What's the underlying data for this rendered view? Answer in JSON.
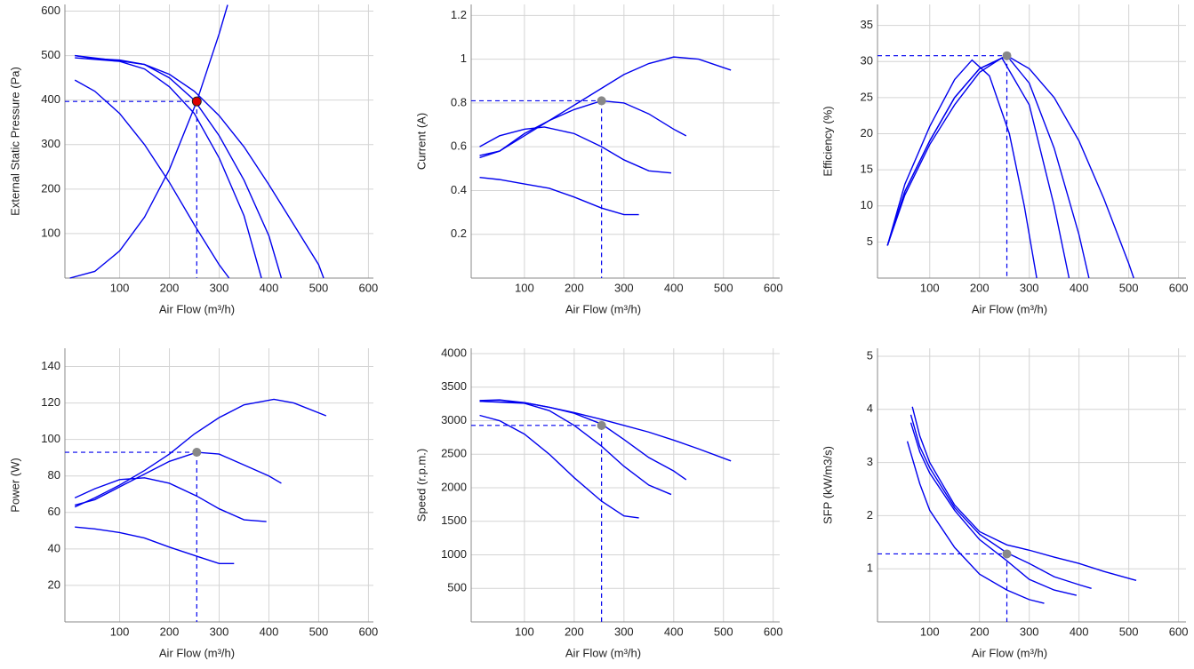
{
  "chart_data": [
    {
      "type": "line",
      "xlabel": "Air Flow (m³/h)",
      "ylabel": "External Static Pressure (Pa)",
      "xlim": [
        -10,
        610
      ],
      "ylim": [
        0,
        615
      ],
      "xticks": [
        100,
        200,
        300,
        400,
        500,
        600
      ],
      "yticks": [
        100,
        200,
        300,
        400,
        500,
        600
      ],
      "grid": true,
      "series": [
        {
          "color": "#0000ee",
          "x": [
            10,
            50,
            100,
            150,
            200,
            250,
            300,
            350,
            400,
            450,
            500,
            510
          ],
          "values": [
            500,
            493,
            490,
            480,
            458,
            420,
            365,
            295,
            210,
            120,
            30,
            0
          ]
        },
        {
          "color": "#0000ee",
          "x": [
            10,
            100,
            150,
            200,
            250,
            300,
            350,
            400,
            425
          ],
          "values": [
            500,
            488,
            480,
            450,
            400,
            320,
            220,
            95,
            0
          ]
        },
        {
          "color": "#0000ee",
          "x": [
            10,
            100,
            150,
            200,
            250,
            300,
            350,
            385
          ],
          "values": [
            495,
            487,
            470,
            430,
            370,
            270,
            140,
            0
          ]
        },
        {
          "color": "#0000ee",
          "x": [
            10,
            50,
            100,
            150,
            200,
            250,
            300,
            320
          ],
          "values": [
            445,
            420,
            370,
            300,
            215,
            120,
            30,
            0
          ]
        },
        {
          "color": "#0000ee",
          "x": [
            0,
            50,
            100,
            150,
            200,
            255,
            300,
            317
          ],
          "values": [
            0,
            15,
            61,
            137,
            244,
            397,
            549,
            614
          ]
        }
      ],
      "operating_point": {
        "x": 255,
        "y": 397,
        "color": "#dd0000"
      }
    },
    {
      "type": "line",
      "xlabel": "Air Flow (m³/h)",
      "ylabel": "Current (A)",
      "xlim": [
        -7,
        613
      ],
      "ylim": [
        0,
        1.25
      ],
      "xticks": [
        100,
        200,
        300,
        400,
        500,
        600
      ],
      "yticks": [
        0.2,
        0.4,
        0.6,
        0.8,
        1,
        1.2
      ],
      "grid": true,
      "series": [
        {
          "color": "#0000ee",
          "x": [
            10,
            50,
            100,
            150,
            200,
            250,
            300,
            350,
            400,
            450,
            515
          ],
          "values": [
            0.56,
            0.58,
            0.65,
            0.72,
            0.79,
            0.86,
            0.93,
            0.98,
            1.01,
            1.0,
            0.95
          ]
        },
        {
          "color": "#0000ee",
          "x": [
            10,
            50,
            100,
            150,
            200,
            255,
            300,
            350,
            400,
            425
          ],
          "values": [
            0.55,
            0.58,
            0.66,
            0.72,
            0.77,
            0.81,
            0.8,
            0.75,
            0.68,
            0.65
          ]
        },
        {
          "color": "#0000ee",
          "x": [
            10,
            50,
            100,
            140,
            200,
            255,
            300,
            350,
            395
          ],
          "values": [
            0.6,
            0.65,
            0.68,
            0.69,
            0.66,
            0.6,
            0.54,
            0.49,
            0.48
          ]
        },
        {
          "color": "#0000ee",
          "x": [
            10,
            50,
            100,
            150,
            200,
            255,
            300,
            330
          ],
          "values": [
            0.46,
            0.45,
            0.43,
            0.41,
            0.37,
            0.32,
            0.29,
            0.29
          ]
        }
      ],
      "operating_point": {
        "x": 255,
        "y": 0.81,
        "color": "#888888"
      }
    },
    {
      "type": "line",
      "xlabel": "Air Flow (m³/h)",
      "ylabel": "Efficiency (%)",
      "xlim": [
        -5,
        615
      ],
      "ylim": [
        0,
        37.9
      ],
      "xticks": [
        100,
        200,
        300,
        400,
        500,
        600
      ],
      "yticks": [
        5,
        10,
        15,
        20,
        25,
        30,
        35
      ],
      "grid": true,
      "series": [
        {
          "color": "#0000ee",
          "x": [
            15,
            50,
            100,
            150,
            200,
            255,
            300,
            350,
            400,
            450,
            500,
            510
          ],
          "values": [
            4.5,
            12,
            19,
            25,
            29,
            30.8,
            29,
            25,
            19,
            11,
            2,
            0
          ]
        },
        {
          "color": "#0000ee",
          "x": [
            15,
            50,
            100,
            150,
            200,
            255,
            300,
            350,
            400,
            420
          ],
          "values": [
            4.5,
            12,
            19,
            25,
            29,
            30.8,
            27,
            18,
            6,
            0
          ]
        },
        {
          "color": "#0000ee",
          "x": [
            15,
            50,
            100,
            150,
            200,
            245,
            300,
            350,
            380
          ],
          "values": [
            4.5,
            11.5,
            18.5,
            24,
            28.5,
            30.5,
            24,
            10,
            0
          ]
        },
        {
          "color": "#0000ee",
          "x": [
            15,
            50,
            100,
            150,
            185,
            220,
            260,
            290,
            315
          ],
          "values": [
            4.5,
            13,
            21,
            27.5,
            30.2,
            28,
            20,
            10,
            0
          ]
        }
      ],
      "operating_point": {
        "x": 255,
        "y": 30.8,
        "color": "#888888"
      }
    },
    {
      "type": "line",
      "xlabel": "Air Flow (m³/h)",
      "ylabel": "Power (W)",
      "xlim": [
        -10,
        610
      ],
      "ylim": [
        0,
        150
      ],
      "xticks": [
        100,
        200,
        300,
        400,
        500,
        600
      ],
      "yticks": [
        20,
        40,
        60,
        80,
        100,
        120,
        140
      ],
      "grid": true,
      "series": [
        {
          "color": "#0000ee",
          "x": [
            10,
            50,
            100,
            150,
            200,
            250,
            300,
            350,
            410,
            450,
            515
          ],
          "values": [
            63,
            68,
            75,
            83,
            92,
            103,
            112,
            119,
            122,
            120,
            113
          ]
        },
        {
          "color": "#0000ee",
          "x": [
            10,
            50,
            100,
            150,
            200,
            255,
            300,
            350,
            400,
            425
          ],
          "values": [
            64,
            67,
            74,
            81,
            88,
            93,
            92,
            86,
            80,
            76
          ]
        },
        {
          "color": "#0000ee",
          "x": [
            10,
            50,
            100,
            150,
            200,
            255,
            300,
            350,
            395
          ],
          "values": [
            68,
            73,
            78,
            79,
            76,
            69,
            62,
            56,
            55
          ]
        },
        {
          "color": "#0000ee",
          "x": [
            10,
            50,
            100,
            150,
            200,
            255,
            300,
            330
          ],
          "values": [
            52,
            51,
            49,
            46,
            41,
            36,
            32,
            32
          ]
        }
      ],
      "operating_point": {
        "x": 255,
        "y": 93,
        "color": "#888888"
      }
    },
    {
      "type": "line",
      "xlabel": "Air Flow (m³/h)",
      "ylabel": "Speed (r.p.m.)",
      "xlim": [
        -7,
        613
      ],
      "ylim": [
        0,
        4080
      ],
      "xticks": [
        100,
        200,
        300,
        400,
        500,
        600
      ],
      "yticks": [
        500,
        1000,
        1500,
        2000,
        2500,
        3000,
        3500,
        4000
      ],
      "grid": true,
      "series": [
        {
          "color": "#0000ee",
          "x": [
            10,
            50,
            100,
            150,
            200,
            255,
            300,
            350,
            400,
            450,
            515
          ],
          "values": [
            3300,
            3310,
            3270,
            3200,
            3120,
            3020,
            2930,
            2830,
            2710,
            2580,
            2400
          ]
        },
        {
          "color": "#0000ee",
          "x": [
            10,
            100,
            150,
            200,
            255,
            300,
            350,
            400,
            425
          ],
          "values": [
            3290,
            3270,
            3200,
            3110,
            2950,
            2720,
            2450,
            2250,
            2120
          ]
        },
        {
          "color": "#0000ee",
          "x": [
            10,
            100,
            150,
            200,
            255,
            300,
            350,
            395
          ],
          "values": [
            3290,
            3260,
            3150,
            2930,
            2620,
            2320,
            2040,
            1900
          ]
        },
        {
          "color": "#0000ee",
          "x": [
            10,
            50,
            100,
            150,
            200,
            255,
            300,
            330
          ],
          "values": [
            3080,
            3000,
            2800,
            2500,
            2150,
            1800,
            1580,
            1550
          ]
        }
      ],
      "operating_point": {
        "x": 255,
        "y": 2930,
        "color": "#888888"
      }
    },
    {
      "type": "line",
      "xlabel": "Air Flow (m³/h)",
      "ylabel": "SFP (kW/m3/s)",
      "xlim": [
        -5,
        615
      ],
      "ylim": [
        0,
        5.15
      ],
      "xticks": [
        100,
        200,
        300,
        400,
        500,
        600
      ],
      "yticks": [
        1,
        2,
        3,
        4,
        5
      ],
      "grid": true,
      "series": [
        {
          "color": "#0000ee",
          "x": [
            65,
            80,
            100,
            150,
            200,
            255,
            300,
            350,
            400,
            450,
            515
          ],
          "values": [
            4.05,
            3.5,
            3.0,
            2.2,
            1.7,
            1.45,
            1.35,
            1.22,
            1.1,
            0.95,
            0.78
          ]
        },
        {
          "color": "#0000ee",
          "x": [
            62,
            80,
            100,
            150,
            200,
            255,
            300,
            350,
            400,
            425
          ],
          "values": [
            3.9,
            3.3,
            2.9,
            2.15,
            1.65,
            1.3,
            1.1,
            0.85,
            0.7,
            0.63
          ]
        },
        {
          "color": "#0000ee",
          "x": [
            62,
            80,
            100,
            150,
            200,
            255,
            300,
            350,
            395
          ],
          "values": [
            3.75,
            3.2,
            2.8,
            2.1,
            1.55,
            1.15,
            0.8,
            0.6,
            0.5
          ]
        },
        {
          "color": "#0000ee",
          "x": [
            55,
            80,
            100,
            150,
            200,
            255,
            300,
            330
          ],
          "values": [
            3.4,
            2.6,
            2.1,
            1.4,
            0.9,
            0.6,
            0.42,
            0.35
          ]
        }
      ],
      "operating_point": {
        "x": 255,
        "y": 1.28,
        "color": "#888888"
      }
    }
  ]
}
